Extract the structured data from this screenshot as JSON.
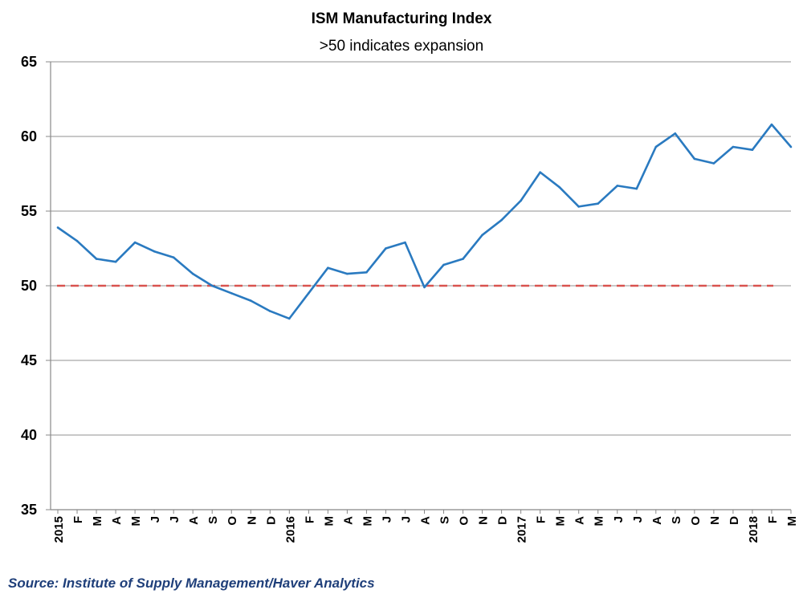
{
  "chart_data": {
    "type": "line",
    "title": "ISM Manufacturing Index",
    "subtitle": ">50 indicates expansion",
    "xlabel": "",
    "ylabel": "",
    "ylim": [
      35,
      65
    ],
    "yticks": [
      35,
      40,
      45,
      50,
      55,
      60,
      65
    ],
    "grid": "horizontal",
    "categories": [
      "2015",
      "F",
      "M",
      "A",
      "M",
      "J",
      "J",
      "A",
      "S",
      "O",
      "N",
      "D",
      "2016",
      "F",
      "M",
      "A",
      "M",
      "J",
      "J",
      "A",
      "S",
      "O",
      "N",
      "D",
      "2017",
      "F",
      "M",
      "A",
      "M",
      "J",
      "J",
      "A",
      "S",
      "O",
      "N",
      "D",
      "2018",
      "F",
      "M"
    ],
    "series": [
      {
        "color": "#2a7ac0",
        "values": [
          53.9,
          53.0,
          51.8,
          51.6,
          52.9,
          52.3,
          51.9,
          50.8,
          50.0,
          49.5,
          49.0,
          48.3,
          47.8,
          49.5,
          51.2,
          50.8,
          50.9,
          52.5,
          52.9,
          49.9,
          51.4,
          51.8,
          53.4,
          54.4,
          55.7,
          57.6,
          56.6,
          55.3,
          55.5,
          56.7,
          56.5,
          59.3,
          60.2,
          58.5,
          58.2,
          59.3,
          59.1,
          60.8,
          59.3
        ]
      }
    ],
    "reference_line": {
      "value": 50,
      "color": "#d9534f",
      "style": "dashed"
    },
    "source": "Source: Institute of Supply Management/Haver Analytics"
  }
}
